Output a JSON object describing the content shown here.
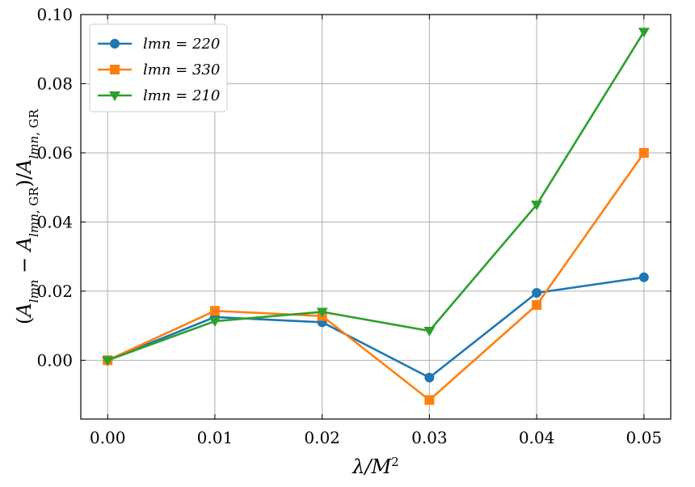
{
  "chart_data": {
    "type": "line",
    "xlabel": "λ/M²",
    "ylabel": "(A_lmn − A_lmn,GR)/A_lmn,GR",
    "x": [
      0.0,
      0.01,
      0.02,
      0.03,
      0.04,
      0.05
    ],
    "x_tick_labels": [
      "0.00",
      "0.01",
      "0.02",
      "0.03",
      "0.04",
      "0.05"
    ],
    "y_ticks": [
      0.0,
      0.02,
      0.04,
      0.06,
      0.08,
      0.1
    ],
    "y_tick_labels": [
      "0.00",
      "0.02",
      "0.04",
      "0.06",
      "0.08",
      "0.10"
    ],
    "xlim": [
      -0.0025,
      0.0525
    ],
    "ylim": [
      -0.017,
      0.1
    ],
    "grid": true,
    "legend_position": "top-left",
    "series": [
      {
        "name": "lmn = 220",
        "color": "#1f77b4",
        "marker": "circle",
        "values": [
          0.0,
          0.0125,
          0.011,
          -0.005,
          0.0195,
          0.024
        ]
      },
      {
        "name": "lmn = 330",
        "color": "#ff7f0e",
        "marker": "square",
        "values": [
          0.0,
          0.0143,
          0.0128,
          -0.0115,
          0.016,
          0.06
        ]
      },
      {
        "name": "lmn = 210",
        "color": "#2ca02c",
        "marker": "triangle-down",
        "values": [
          0.0,
          0.0113,
          0.014,
          0.0085,
          0.045,
          0.095
        ]
      }
    ]
  }
}
